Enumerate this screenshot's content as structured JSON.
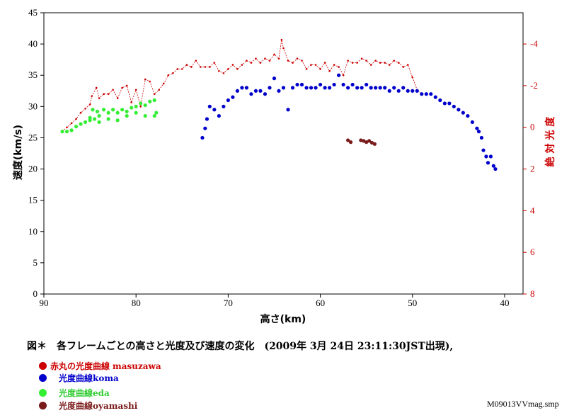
{
  "chart_data": {
    "type": "scatter",
    "title": "図＊　各フレームごとの高さと光度及び速度の変化　(2009年 3月 24日 23:11:30JST出現),",
    "xlabel": "高さ(km)",
    "ylabel": "速度(km/s)",
    "y2label": "絶 対 光 度",
    "xlim": [
      90,
      38
    ],
    "ylim": [
      0,
      45
    ],
    "y2lim": [
      8,
      -5.5
    ],
    "x_ticks": [
      90,
      80,
      70,
      60,
      50,
      40
    ],
    "y_ticks": [
      0,
      5,
      10,
      15,
      20,
      25,
      30,
      35,
      40,
      45
    ],
    "y2_ticks": [
      -4,
      -2,
      0,
      2,
      4,
      6,
      8
    ],
    "y2_tick_labels": [
      "-4",
      "-2",
      "0",
      "2",
      "4",
      "6",
      "8"
    ],
    "grid": false,
    "series": [
      {
        "name": "赤丸の光度曲線 masuzawa",
        "label_prefix": "赤丸の光度曲線",
        "label_suffix": "masuzawa",
        "color": "#cc0000",
        "axis": "y2",
        "marker": "small",
        "points": [
          [
            88,
            0.2
          ],
          [
            87.5,
            0.0
          ],
          [
            87,
            -0.2
          ],
          [
            86.5,
            -0.4
          ],
          [
            86,
            -0.7
          ],
          [
            85.5,
            -0.9
          ],
          [
            85,
            -1.1
          ],
          [
            84.8,
            -1.5
          ],
          [
            84.3,
            -1.9
          ],
          [
            84,
            -1.4
          ],
          [
            83.5,
            -1.6
          ],
          [
            83,
            -1.6
          ],
          [
            82.5,
            -1.8
          ],
          [
            82,
            -1.4
          ],
          [
            81.5,
            -1.9
          ],
          [
            81,
            -2.0
          ],
          [
            80.5,
            -1.2
          ],
          [
            80,
            -1.8
          ],
          [
            79.5,
            -1.0
          ],
          [
            79,
            -2.3
          ],
          [
            78.5,
            -2.2
          ],
          [
            78,
            -1.6
          ],
          [
            77.5,
            -1.8
          ],
          [
            77,
            -2.1
          ],
          [
            76.5,
            -2.5
          ],
          [
            76,
            -2.6
          ],
          [
            75.5,
            -2.8
          ],
          [
            75,
            -2.8
          ],
          [
            74.5,
            -3.0
          ],
          [
            74,
            -2.9
          ],
          [
            73.5,
            -3.2
          ],
          [
            73,
            -2.9
          ],
          [
            72.5,
            -2.9
          ],
          [
            72,
            -2.9
          ],
          [
            71.5,
            -3.1
          ],
          [
            71,
            -2.7
          ],
          [
            70.5,
            -2.6
          ],
          [
            70,
            -2.8
          ],
          [
            69.5,
            -3.0
          ],
          [
            69,
            -2.8
          ],
          [
            68.5,
            -3.0
          ],
          [
            68,
            -3.2
          ],
          [
            67.5,
            -3.1
          ],
          [
            67,
            -3.3
          ],
          [
            66.5,
            -3.1
          ],
          [
            66,
            -3.3
          ],
          [
            65.5,
            -3.2
          ],
          [
            65,
            -3.5
          ],
          [
            64.5,
            -3.3
          ],
          [
            64.2,
            -4.2
          ],
          [
            64,
            -3.8
          ],
          [
            63.5,
            -3.2
          ],
          [
            63,
            -3.1
          ],
          [
            62.5,
            -3.3
          ],
          [
            62,
            -3.2
          ],
          [
            61.5,
            -2.8
          ],
          [
            61,
            -3.0
          ],
          [
            60.5,
            -3.0
          ],
          [
            60,
            -2.8
          ],
          [
            59.5,
            -3.1
          ],
          [
            59,
            -2.7
          ],
          [
            58.5,
            -3.0
          ],
          [
            58,
            -2.9
          ],
          [
            57.5,
            -2.5
          ],
          [
            57,
            -3.2
          ],
          [
            56.5,
            -3.1
          ],
          [
            56,
            -3.1
          ],
          [
            55.5,
            -3.3
          ],
          [
            55,
            -3.2
          ],
          [
            54.5,
            -3.0
          ],
          [
            54,
            -3.2
          ],
          [
            53.5,
            -3.1
          ],
          [
            53,
            -3.1
          ],
          [
            52.5,
            -3.0
          ],
          [
            52,
            -3.2
          ],
          [
            51.5,
            -3.1
          ],
          [
            51,
            -2.9
          ],
          [
            50.5,
            -3.0
          ],
          [
            50,
            -2.4
          ],
          [
            49.5,
            -1.8
          ],
          [
            49,
            -1.6
          ]
        ]
      },
      {
        "name": "光度曲線koma",
        "label_prefix": "光度曲線",
        "label_suffix": "koma",
        "color": "#0000cc",
        "axis": "y",
        "marker": "large",
        "points": [
          [
            72.8,
            25
          ],
          [
            72.5,
            26.5
          ],
          [
            72.3,
            28
          ],
          [
            72,
            30
          ],
          [
            71.5,
            29.5
          ],
          [
            71,
            28.5
          ],
          [
            70.5,
            30
          ],
          [
            70,
            31
          ],
          [
            69.5,
            31.5
          ],
          [
            69,
            32.5
          ],
          [
            68.5,
            33
          ],
          [
            68,
            33
          ],
          [
            67.5,
            32
          ],
          [
            67,
            32.5
          ],
          [
            66.5,
            32.5
          ],
          [
            66,
            32
          ],
          [
            65.5,
            33
          ],
          [
            65,
            34.5
          ],
          [
            64.5,
            32.5
          ],
          [
            64,
            33
          ],
          [
            63.5,
            29.5
          ],
          [
            63,
            33
          ],
          [
            62.5,
            33.5
          ],
          [
            62,
            33.5
          ],
          [
            61.5,
            33
          ],
          [
            61,
            33
          ],
          [
            60.5,
            33
          ],
          [
            60,
            33.5
          ],
          [
            59.5,
            33
          ],
          [
            59,
            33
          ],
          [
            58.5,
            33.5
          ],
          [
            58,
            35
          ],
          [
            57.5,
            33.5
          ],
          [
            57,
            33
          ],
          [
            56.5,
            33.5
          ],
          [
            56,
            33
          ],
          [
            55.5,
            33
          ],
          [
            55,
            33.5
          ],
          [
            54.5,
            33
          ],
          [
            54,
            33
          ],
          [
            53.5,
            33
          ],
          [
            53,
            33
          ],
          [
            52.5,
            32.5
          ],
          [
            52,
            33
          ],
          [
            51.5,
            32.5
          ],
          [
            51,
            33
          ],
          [
            50.5,
            32.5
          ],
          [
            50,
            32.5
          ],
          [
            49.5,
            32.5
          ],
          [
            49,
            32
          ],
          [
            48.5,
            32
          ],
          [
            48,
            32
          ],
          [
            47.5,
            31.5
          ],
          [
            47,
            31
          ],
          [
            46.5,
            30.5
          ],
          [
            46,
            30.5
          ],
          [
            45.5,
            30
          ],
          [
            45,
            29.5
          ],
          [
            44.5,
            29
          ],
          [
            44,
            28.5
          ],
          [
            43.5,
            27.5
          ],
          [
            43,
            26.5
          ],
          [
            42.8,
            26
          ],
          [
            42.5,
            25
          ],
          [
            42.3,
            23
          ],
          [
            42,
            22
          ],
          [
            41.8,
            21
          ],
          [
            41.5,
            22
          ],
          [
            41.2,
            20.5
          ],
          [
            41,
            20
          ]
        ]
      },
      {
        "name": "光度曲線eda",
        "label_prefix": "光度曲線",
        "label_suffix": "eda",
        "color": "#33ee33",
        "axis": "y",
        "marker": "large",
        "points": [
          [
            88,
            26
          ],
          [
            87.5,
            26
          ],
          [
            87,
            26.2
          ],
          [
            86.5,
            26.8
          ],
          [
            86,
            27.2
          ],
          [
            85.5,
            27.5
          ],
          [
            85,
            27.8
          ],
          [
            84.5,
            28
          ],
          [
            84,
            28.5
          ],
          [
            84.7,
            29.5
          ],
          [
            84.2,
            29.2
          ],
          [
            83.5,
            29.5
          ],
          [
            83,
            29
          ],
          [
            82.5,
            29.5
          ],
          [
            82,
            29
          ],
          [
            81.5,
            29.5
          ],
          [
            81,
            29.2
          ],
          [
            80.5,
            29.8
          ],
          [
            80,
            30
          ],
          [
            79.5,
            30.5
          ],
          [
            79,
            30.2
          ],
          [
            78.5,
            30.8
          ],
          [
            78,
            31
          ],
          [
            77.8,
            29
          ],
          [
            83,
            28
          ],
          [
            82,
            27.8
          ],
          [
            81,
            28.5
          ],
          [
            80,
            29
          ],
          [
            79,
            28.5
          ],
          [
            78,
            28.5
          ],
          [
            84,
            27.5
          ],
          [
            85,
            28.2
          ]
        ]
      },
      {
        "name": "光度曲線oyamashi",
        "label_prefix": "光度曲線",
        "label_suffix": "oyamashi",
        "color": "#7a1a1a",
        "axis": "y",
        "marker": "large",
        "points": [
          [
            57,
            24.6
          ],
          [
            56.7,
            24.3
          ],
          [
            55.6,
            24.6
          ],
          [
            55.3,
            24.5
          ],
          [
            55,
            24.3
          ],
          [
            54.7,
            24.5
          ],
          [
            54.4,
            24.2
          ],
          [
            54.1,
            24.0
          ]
        ]
      }
    ]
  },
  "filename": "M09013VVmag.smp"
}
